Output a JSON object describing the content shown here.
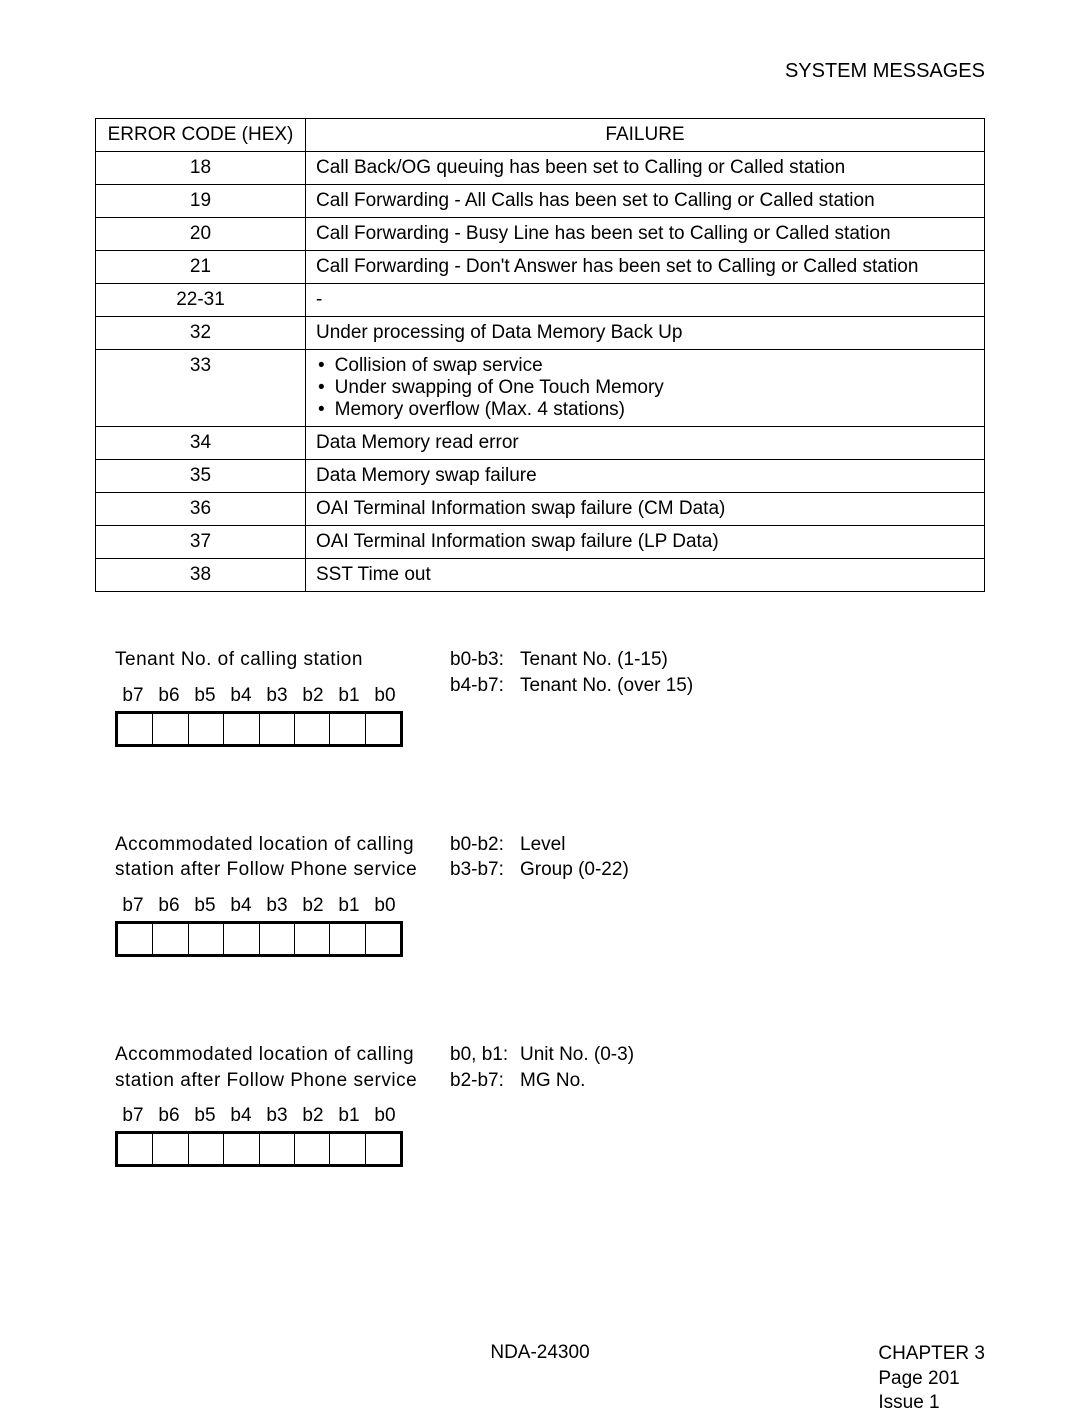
{
  "header": {
    "title": "SYSTEM MESSAGES"
  },
  "table": {
    "col_code": "ERROR CODE (HEX)",
    "col_fail": "FAILURE",
    "rows": {
      "r0": {
        "code": "18",
        "fail": "Call Back/OG queuing has been set to Calling or Called station"
      },
      "r1": {
        "code": "19",
        "fail": "Call Forwarding - All Calls has been set to Calling or Called station"
      },
      "r2": {
        "code": "20",
        "fail": "Call Forwarding - Busy Line has been set to Calling or Called station"
      },
      "r3": {
        "code": "21",
        "fail": "Call Forwarding - Don't Answer has been set to Calling or Called station"
      },
      "r4": {
        "code": "22-31",
        "fail": "-"
      },
      "r5": {
        "code": "32",
        "fail": "Under processing of Data Memory Back Up"
      },
      "r6": {
        "code": "33",
        "b0": "Collision of swap service",
        "b1": "Under swapping of One Touch Memory",
        "b2": "Memory overflow (Max. 4 stations)"
      },
      "r7": {
        "code": "34",
        "fail": "Data Memory read error"
      },
      "r8": {
        "code": "35",
        "fail": "Data Memory swap failure"
      },
      "r9": {
        "code": "36",
        "fail": "OAI Terminal Information swap failure (CM Data)"
      },
      "r10": {
        "code": "37",
        "fail": "OAI Terminal Information swap failure (LP Data)"
      },
      "r11": {
        "code": "38",
        "fail": "SST Time out"
      }
    }
  },
  "bits": {
    "b7": "b7",
    "b6": "b6",
    "b5": "b5",
    "b4": "b4",
    "b3": "b3",
    "b2": "b2",
    "b1": "b1",
    "b0": "b0"
  },
  "sec1": {
    "title": "Tenant No. of calling station",
    "d0k": "b0-b3:",
    "d0v": "Tenant No. (1-15)",
    "d1k": "b4-b7:",
    "d1v": "Tenant No. (over 15)"
  },
  "sec2": {
    "title": "Accommodated location of calling station after Follow Phone service",
    "d0k": "b0-b2:",
    "d0v": "Level",
    "d1k": "b3-b7:",
    "d1v": "Group (0-22)"
  },
  "sec3": {
    "title": "Accommodated location of calling station after Follow Phone service",
    "d0k": "b0, b1:",
    "d0v": "Unit No. (0-3)",
    "d1k": "b2-b7:",
    "d1v": "MG No."
  },
  "footer": {
    "center": "NDA-24300",
    "chapter": "CHAPTER 3",
    "page": "Page 201",
    "issue": "Issue 1"
  }
}
